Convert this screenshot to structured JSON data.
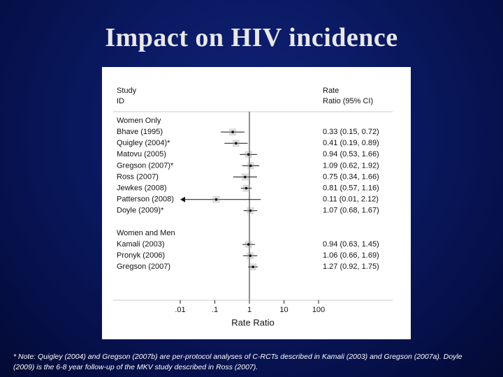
{
  "slide": {
    "title": "Impact on HIV incidence",
    "footnote_line1": "* Note: Quigley (2004) and Gregson (2007b) are per-protocol analyses of C-RCTs described in Kamali (2003) and Gregson (2007a). Doyle",
    "footnote_line2": "(2009) is the 6-8 year follow-up of the MKV study described in Ross (2007)."
  },
  "chart_data": {
    "type": "forest",
    "header_left": [
      "Study",
      "ID"
    ],
    "header_right": [
      "Rate",
      "Ratio (95% CI)"
    ],
    "xlabel": "Rate Ratio",
    "x_scale": "log",
    "x_ticks": [
      {
        "value": 0.01,
        "label": ".01"
      },
      {
        "value": 0.1,
        "label": ".1"
      },
      {
        "value": 1,
        "label": "1"
      },
      {
        "value": 10,
        "label": "10"
      },
      {
        "value": 100,
        "label": "100"
      }
    ],
    "reference_line": 1,
    "groups": [
      {
        "label": "Women Only",
        "studies": [
          {
            "study": "Bhave (1995)",
            "rr": 0.33,
            "lo": 0.15,
            "hi": 0.72,
            "ci_text": "0.33 (0.15, 0.72)",
            "arrow_left": false
          },
          {
            "study": "Quigley (2004)*",
            "rr": 0.41,
            "lo": 0.19,
            "hi": 0.89,
            "ci_text": "0.41 (0.19, 0.89)",
            "arrow_left": false
          },
          {
            "study": "Matovu (2005)",
            "rr": 0.94,
            "lo": 0.53,
            "hi": 1.66,
            "ci_text": "0.94 (0.53, 1.66)",
            "arrow_left": false
          },
          {
            "study": "Gregson (2007)*",
            "rr": 1.09,
            "lo": 0.62,
            "hi": 1.92,
            "ci_text": "1.09 (0.62, 1.92)",
            "arrow_left": false
          },
          {
            "study": "Ross (2007)",
            "rr": 0.75,
            "lo": 0.34,
            "hi": 1.66,
            "ci_text": "0.75 (0.34, 1.66)",
            "arrow_left": false
          },
          {
            "study": "Jewkes (2008)",
            "rr": 0.81,
            "lo": 0.57,
            "hi": 1.16,
            "ci_text": "0.81 (0.57, 1.16)",
            "arrow_left": false
          },
          {
            "study": "Patterson (2008)",
            "rr": 0.11,
            "lo": 0.01,
            "hi": 2.12,
            "ci_text": "0.11 (0.01, 2.12)",
            "arrow_left": true
          },
          {
            "study": "Doyle (2009)*",
            "rr": 1.07,
            "lo": 0.68,
            "hi": 1.67,
            "ci_text": "1.07 (0.68, 1.67)",
            "arrow_left": false
          }
        ]
      },
      {
        "label": "Women and Men",
        "studies": [
          {
            "study": "Kamali (2003)",
            "rr": 0.94,
            "lo": 0.63,
            "hi": 1.45,
            "ci_text": "0.94 (0.63, 1.45)",
            "arrow_left": false
          },
          {
            "study": "Pronyk (2006)",
            "rr": 1.06,
            "lo": 0.66,
            "hi": 1.69,
            "ci_text": "1.06 (0.66, 1.69)",
            "arrow_left": false
          },
          {
            "study": "Gregson (2007)",
            "rr": 1.27,
            "lo": 0.92,
            "hi": 1.75,
            "ci_text": "1.27 (0.92, 1.75)",
            "arrow_left": false
          }
        ]
      }
    ]
  }
}
